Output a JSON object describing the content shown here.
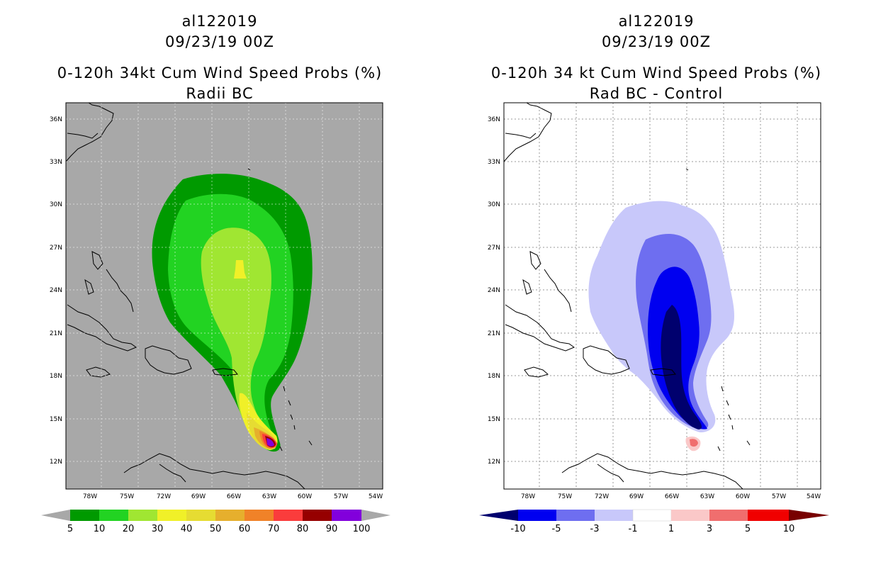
{
  "left_panel": {
    "storm_id": "al122019",
    "datetime": "09/23/19 00Z",
    "product": "0-120h 34kt Cum Wind Speed Probs (%)",
    "subtitle": "Radii BC",
    "lat_labels": [
      "36N",
      "33N",
      "30N",
      "27N",
      "24N",
      "21N",
      "18N",
      "15N",
      "12N"
    ],
    "lon_labels": [
      "78W",
      "75W",
      "72W",
      "69W",
      "66W",
      "63W",
      "60W",
      "57W",
      "54W"
    ],
    "colorbar": {
      "labels": [
        "5",
        "10",
        "20",
        "30",
        "40",
        "50",
        "60",
        "70",
        "80",
        "90",
        "100"
      ],
      "colors": [
        "#a8a8a8",
        "#009a00",
        "#22d322",
        "#a0e632",
        "#f0f028",
        "#e6dc32",
        "#e6af2d",
        "#f08228",
        "#fa3c3c",
        "#960000",
        "#8200dc",
        "#a8a8a8"
      ]
    }
  },
  "right_panel": {
    "storm_id": "al122019",
    "datetime": "09/23/19 00Z",
    "product": "0-120h 34 kt Cum Wind Speed Probs (%)",
    "subtitle": "Rad BC - Control",
    "lat_labels": [
      "36N",
      "33N",
      "30N",
      "27N",
      "24N",
      "21N",
      "18N",
      "15N",
      "12N"
    ],
    "lon_labels": [
      "78W",
      "75W",
      "72W",
      "69W",
      "66W",
      "63W",
      "60W",
      "57W",
      "54W"
    ],
    "colorbar": {
      "labels": [
        "-10",
        "-5",
        "-3",
        "-1",
        "1",
        "3",
        "5",
        "10"
      ],
      "colors": [
        "#00006e",
        "#0000f0",
        "#6e6ef0",
        "#c8c8fa",
        "#ffffff",
        "#fac8c8",
        "#f06e6e",
        "#f00000",
        "#780000"
      ]
    }
  }
}
